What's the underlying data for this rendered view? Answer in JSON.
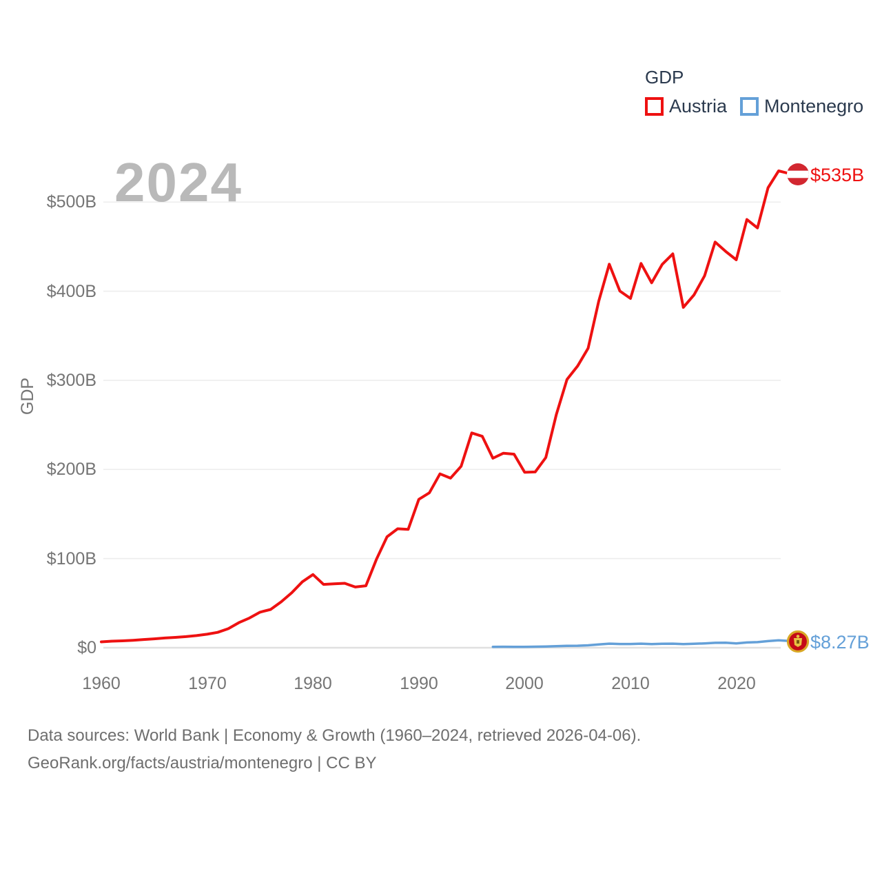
{
  "watermark": "2024",
  "legend": {
    "title": "GDP",
    "items": [
      {
        "label": "Austria",
        "color": "#ee1111"
      },
      {
        "label": "Montenegro",
        "color": "#64a0d8"
      }
    ]
  },
  "y_axis": {
    "title": "GDP",
    "ticks": [
      "$0",
      "$100B",
      "$200B",
      "$300B",
      "$400B",
      "$500B"
    ]
  },
  "x_axis": {
    "ticks": [
      "1960",
      "1970",
      "1980",
      "1990",
      "2000",
      "2010",
      "2020"
    ]
  },
  "end_labels": {
    "austria": "$535B",
    "montenegro": "$8.27B"
  },
  "footer": {
    "line1": "Data sources: World Bank | Economy & Growth (1960–2024, retrieved 2026-04-06).",
    "line2": "GeoRank.org/facts/austria/montenegro | CC BY"
  },
  "chart_data": {
    "type": "line",
    "title": "GDP",
    "ylabel": "GDP",
    "unit": "billions USD",
    "x_range": [
      1960,
      2024
    ],
    "ylim": [
      0,
      560
    ],
    "y_ticks_billions": [
      0,
      100,
      200,
      300,
      400,
      500
    ],
    "grid": "horizontal",
    "legend_position": "top-right",
    "series": [
      {
        "name": "Austria",
        "color": "#ee1111",
        "end_label": "$535B",
        "start_year": 1960,
        "values": [
          6.59,
          7.31,
          7.76,
          8.37,
          9.17,
          9.99,
          10.89,
          11.58,
          12.44,
          13.58,
          15.15,
          17.27,
          21.32,
          28.16,
          33.33,
          39.9,
          42.93,
          51.51,
          61.77,
          73.97,
          82.11,
          71.04,
          71.63,
          72.31,
          68.1,
          69.51,
          99.21,
          124.47,
          133.4,
          132.82,
          166.46,
          173.79,
          195.08,
          190.28,
          203.54,
          240.99,
          237.22,
          212.61,
          218.25,
          217.17,
          196.8,
          197.23,
          213.38,
          261.7,
          300.9,
          315.97,
          336.0,
          388.69,
          430.29,
          400.17,
          391.89,
          431.12,
          409.43,
          430.07,
          441.89,
          381.82,
          395.78,
          417.26,
          455.09,
          444.62,
          435.23,
          480.37,
          470.94,
          516.03,
          535.0
        ]
      },
      {
        "name": "Montenegro",
        "color": "#64a0d8",
        "end_label": "$8.27B",
        "start_year": 1997,
        "values": [
          1.04,
          1.09,
          0.99,
          0.98,
          1.16,
          1.28,
          1.7,
          2.07,
          2.26,
          2.72,
          3.67,
          4.55,
          4.16,
          4.14,
          4.54,
          4.09,
          4.46,
          4.59,
          4.05,
          4.37,
          4.86,
          5.51,
          5.54,
          4.77,
          5.86,
          6.23,
          7.41,
          8.27
        ]
      }
    ]
  }
}
